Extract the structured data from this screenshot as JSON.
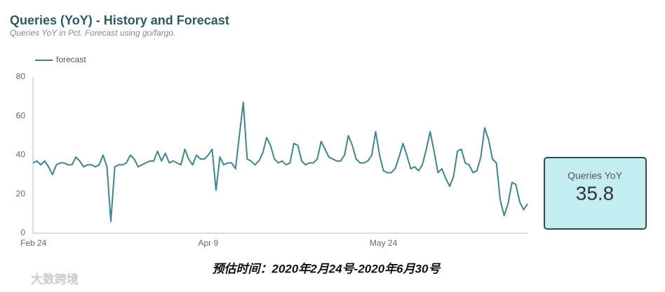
{
  "chart_data": {
    "type": "line",
    "title": "Queries (YoY) - History and Forecast",
    "subtitle": "Queries YoY in Pct. Forecast using go/fargo.",
    "categories": [
      "Feb 24",
      null,
      null,
      null,
      null,
      null,
      null,
      null,
      null,
      null,
      null,
      null,
      null,
      null,
      null,
      null,
      null,
      null,
      null,
      null,
      null,
      null,
      null,
      null,
      null,
      null,
      null,
      null,
      null,
      null,
      null,
      null,
      null,
      null,
      null,
      null,
      null,
      null,
      null,
      null,
      null,
      null,
      null,
      null,
      null,
      "Apr 9",
      null,
      null,
      null,
      null,
      null,
      null,
      null,
      null,
      null,
      null,
      null,
      null,
      null,
      null,
      null,
      null,
      null,
      null,
      null,
      null,
      null,
      null,
      null,
      null,
      null,
      null,
      null,
      null,
      null,
      null,
      null,
      null,
      null,
      null,
      null,
      null,
      null,
      null,
      null,
      null,
      null,
      null,
      null,
      null,
      "May 24",
      null,
      null,
      null,
      null,
      null,
      null,
      null,
      null,
      null,
      null,
      null,
      null,
      null,
      null,
      null,
      null,
      null,
      null,
      null,
      null,
      null,
      null,
      null,
      null,
      null,
      null,
      null,
      null,
      null,
      null,
      null,
      null,
      null,
      null,
      null,
      null,
      null
    ],
    "series": [
      {
        "name": "forecast",
        "color": "#3d878c",
        "values": [
          36,
          37,
          35,
          37,
          34,
          30,
          35,
          36,
          36,
          35,
          35,
          39,
          37,
          34,
          35,
          35,
          34,
          35,
          40,
          34,
          6,
          34,
          35,
          35,
          36,
          40,
          38,
          34,
          35,
          36,
          37,
          37,
          42,
          37,
          41,
          36,
          37,
          36,
          35,
          43,
          38,
          35,
          40,
          38,
          38,
          40,
          43,
          22,
          39,
          35,
          36,
          36,
          33,
          50,
          67,
          38,
          37,
          35,
          37,
          41,
          49,
          45,
          38,
          36,
          37,
          35,
          36,
          46,
          45,
          37,
          35,
          36,
          36,
          38,
          47,
          43,
          39,
          38,
          37,
          37,
          40,
          50,
          45,
          38,
          36,
          36,
          37,
          40,
          52,
          40,
          32,
          31,
          31,
          33,
          39,
          46,
          40,
          33,
          34,
          32,
          35,
          43,
          52,
          42,
          31,
          33,
          28,
          24,
          29,
          42,
          43,
          36,
          35,
          31,
          32,
          39,
          54,
          48,
          38,
          36,
          17,
          9,
          15,
          26,
          25,
          16,
          12,
          15
        ]
      }
    ],
    "ylim": [
      0,
      80
    ],
    "yticks": [
      0,
      20,
      40,
      60,
      80
    ],
    "grid": false,
    "legend": "top-left"
  },
  "scorecard": {
    "label": "Queries YoY",
    "value": "35.8"
  },
  "caption": "预估时间：2020年2月24号-2020年6月30号",
  "watermark": "大数跨境"
}
